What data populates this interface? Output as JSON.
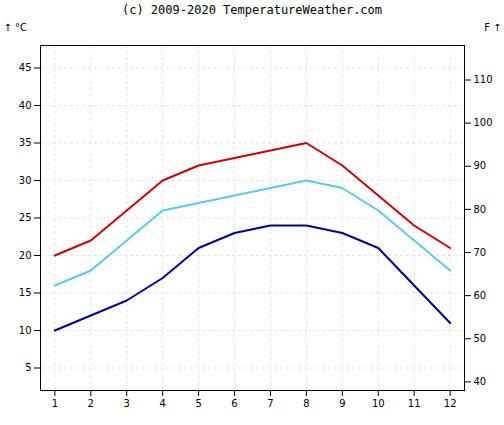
{
  "chart_data": {
    "type": "line",
    "title": "(c) 2009-2020 TemperatureWeather.com",
    "x": [
      1,
      2,
      3,
      4,
      5,
      6,
      7,
      8,
      9,
      10,
      11,
      12
    ],
    "series": [
      {
        "color": "#cc0000",
        "values": [
          20,
          22,
          26,
          30,
          32,
          33,
          34,
          35,
          32,
          28,
          24,
          21
        ]
      },
      {
        "color": "#55ccee",
        "values": [
          16,
          18,
          22,
          26,
          27,
          28,
          29,
          30,
          29,
          26,
          22,
          18
        ]
      },
      {
        "color": "#000099",
        "values": [
          10,
          12,
          14,
          17,
          21,
          23,
          24,
          24,
          23,
          21,
          16,
          11
        ]
      }
    ],
    "ylabel": "°C",
    "y2label": "F",
    "xlim": [
      0.6,
      12.4
    ],
    "xticks": [
      1,
      2,
      3,
      4,
      5,
      6,
      7,
      8,
      9,
      10,
      11,
      12
    ],
    "ylim": [
      2,
      48
    ],
    "yticks": [
      5,
      10,
      15,
      20,
      25,
      30,
      35,
      40,
      45
    ],
    "y2lim": [
      38,
      118
    ],
    "y2ticks": [
      40,
      50,
      60,
      70,
      80,
      90,
      100,
      110
    ],
    "grid": true
  }
}
